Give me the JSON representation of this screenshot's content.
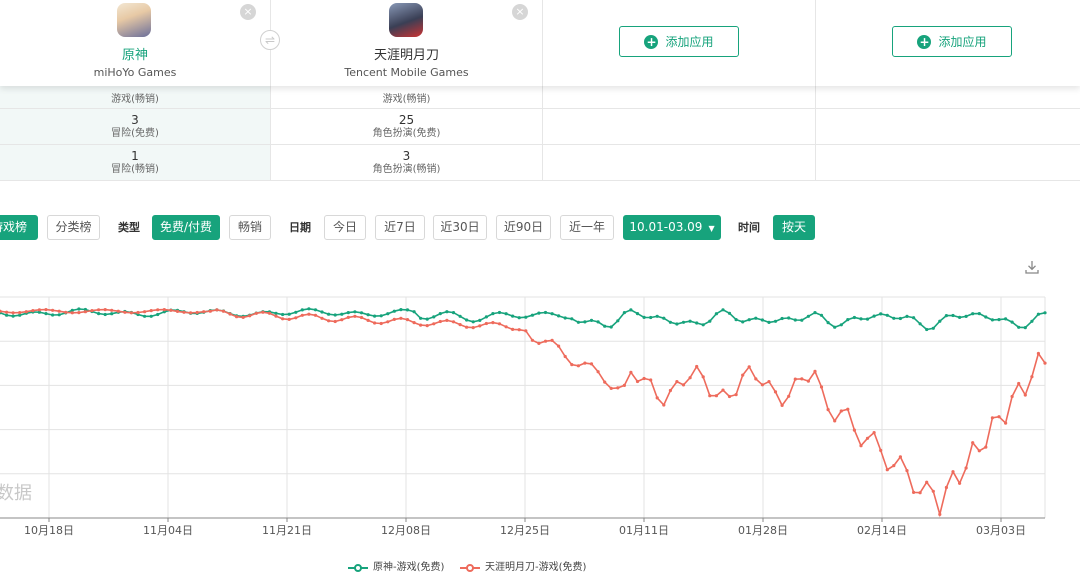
{
  "apps": [
    {
      "name": "原神",
      "developer": "miHoYo Games"
    },
    {
      "name": "天涯明月刀",
      "developer": "Tencent Mobile Games"
    }
  ],
  "add_app_label": "添加应用",
  "close_symbol": "×",
  "swap_symbol": "⇌",
  "plus_symbol": "+",
  "table": {
    "rows": [
      {
        "cells": [
          {
            "rank": "",
            "category": "游戏(畅销)"
          },
          {
            "rank": "",
            "category": "游戏(畅销)"
          }
        ]
      },
      {
        "cells": [
          {
            "rank": "3",
            "category": "冒险(免费)"
          },
          {
            "rank": "25",
            "category": "角色扮演(免费)"
          }
        ]
      },
      {
        "cells": [
          {
            "rank": "1",
            "category": "冒险(畅销)"
          },
          {
            "rank": "3",
            "category": "角色扮演(畅销)"
          }
        ]
      }
    ]
  },
  "filters": {
    "game_chart": "游戏榜",
    "category_chart": "分类榜",
    "type_label": "类型",
    "free_paid": "免费/付费",
    "bestseller": "畅销",
    "date_label": "日期",
    "today": "今日",
    "last7": "近7日",
    "last30": "近30日",
    "last90": "近90日",
    "last_year": "近一年",
    "date_range": "10.01-03.09",
    "time_label": "时间",
    "by_day": "按天"
  },
  "watermark_text": "数据",
  "chart_data": {
    "type": "line",
    "x_ticks": [
      "10月18日",
      "11月04日",
      "11月21日",
      "12月08日",
      "12月25日",
      "01月11日",
      "01月28日",
      "02月14日",
      "03月03日"
    ],
    "y_axis": "rank (inverted), no tick labels visible",
    "series": [
      {
        "name": "原神-游戏(免费)",
        "color": "#17a37c",
        "values": [
          1,
          1,
          1,
          1,
          1,
          1,
          1,
          1,
          1,
          1,
          1,
          1,
          1,
          1,
          1,
          1,
          1,
          1,
          1,
          1,
          1,
          1,
          1,
          1,
          1,
          1,
          1,
          1,
          1,
          1,
          1,
          1,
          1,
          1,
          1,
          1,
          1,
          1,
          1,
          1,
          1,
          1,
          1,
          1,
          1,
          1,
          1,
          1,
          1,
          1,
          1,
          1,
          1,
          1,
          1,
          1,
          1,
          1,
          1,
          1,
          1,
          1,
          1,
          1,
          1,
          1,
          1,
          1,
          1,
          1,
          1,
          1,
          1,
          1,
          1,
          1,
          1,
          1,
          1,
          1,
          1,
          1,
          1,
          1,
          1,
          1,
          1,
          1,
          1,
          1,
          1,
          1,
          1,
          1,
          1,
          1,
          1,
          1,
          1,
          1,
          1,
          1,
          1,
          1,
          1,
          1,
          1,
          1,
          1,
          1,
          1,
          1,
          1,
          1,
          1,
          1,
          1,
          1,
          1,
          1,
          1,
          1,
          1,
          1,
          1,
          1,
          1,
          1,
          1,
          1,
          1,
          1,
          1,
          1,
          1,
          1,
          1,
          1,
          1,
          1,
          1,
          1,
          1,
          1,
          1,
          1,
          1,
          1,
          1,
          1
        ]
      },
      {
        "name": "天涯明月刀-游戏(免费)",
        "color": "#ee6b5c",
        "values": []
      }
    ]
  }
}
